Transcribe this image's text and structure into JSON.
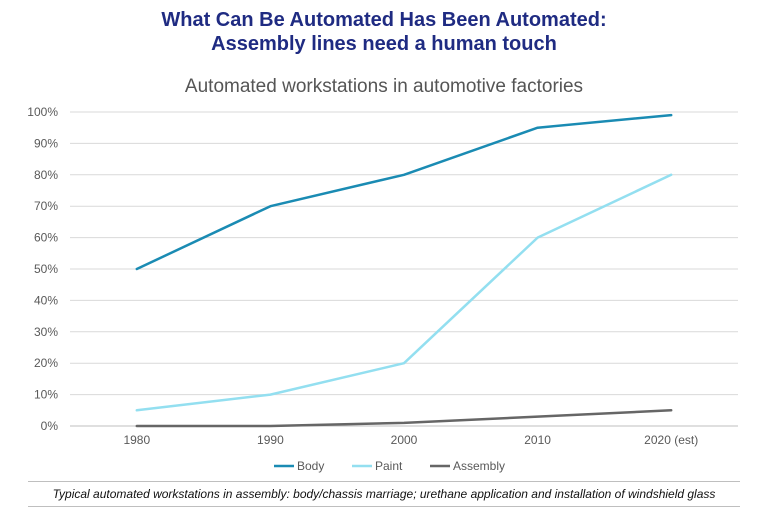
{
  "header": {
    "title_line1": "What Can Be Automated Has Been Automated:",
    "title_line2": "Assembly lines need a human touch"
  },
  "chart_data": {
    "type": "line",
    "title": "Automated workstations in automotive factories",
    "categories": [
      "1980",
      "1990",
      "2000",
      "2010",
      "2020 (est)"
    ],
    "y_ticks": [
      "0%",
      "10%",
      "20%",
      "30%",
      "40%",
      "50%",
      "60%",
      "70%",
      "80%",
      "90%",
      "100%"
    ],
    "ylim": [
      0,
      100
    ],
    "grid": true,
    "legend_position": "bottom",
    "series": [
      {
        "name": "Body",
        "color": "#1a8bb3",
        "values": [
          50,
          70,
          80,
          95,
          99
        ]
      },
      {
        "name": "Paint",
        "color": "#93dff0",
        "values": [
          5,
          10,
          20,
          60,
          80
        ]
      },
      {
        "name": "Assembly",
        "color": "#666666",
        "values": [
          0,
          0,
          1,
          3,
          5
        ]
      }
    ]
  },
  "footnote": "Typical automated workstations in assembly: body/chassis marriage; urethane application and installation of windshield glass"
}
